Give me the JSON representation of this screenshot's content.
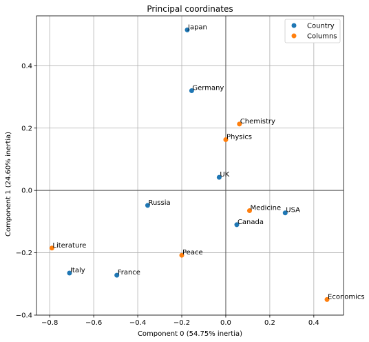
{
  "chart_data": {
    "type": "scatter",
    "title": "Principal coordinates",
    "xlabel": "Component 0 (54.75% inertia)",
    "ylabel": "Component 1 (24.60% inertia)",
    "xlim": [
      -0.86,
      0.535
    ],
    "ylim": [
      -0.4,
      0.56
    ],
    "xticks": [
      -0.8,
      -0.6,
      -0.4,
      -0.2,
      0.0,
      0.2,
      0.4
    ],
    "xtick_labels": [
      "−0.8",
      "−0.6",
      "−0.4",
      "−0.2",
      "0.0",
      "0.2",
      "0.4"
    ],
    "yticks": [
      -0.4,
      -0.2,
      0.0,
      0.2,
      0.4
    ],
    "ytick_labels": [
      "−0.4",
      "−0.2",
      "0.0",
      "0.2",
      "0.4"
    ],
    "grid": true,
    "legend_position": "top-right",
    "series": [
      {
        "name": "Country",
        "color": "#1f77b4",
        "points": [
          {
            "label": "Japan",
            "x": -0.175,
            "y": 0.515
          },
          {
            "label": "Germany",
            "x": -0.155,
            "y": 0.32
          },
          {
            "label": "UK",
            "x": -0.03,
            "y": 0.042
          },
          {
            "label": "Russia",
            "x": -0.355,
            "y": -0.048
          },
          {
            "label": "USA",
            "x": 0.27,
            "y": -0.072
          },
          {
            "label": "Canada",
            "x": 0.05,
            "y": -0.11
          },
          {
            "label": "Italy",
            "x": -0.71,
            "y": -0.265
          },
          {
            "label": "France",
            "x": -0.495,
            "y": -0.272
          }
        ]
      },
      {
        "name": "Columns",
        "color": "#ff7f0e",
        "points": [
          {
            "label": "Chemistry",
            "x": 0.062,
            "y": 0.213
          },
          {
            "label": "Physics",
            "x": 0.0,
            "y": 0.163
          },
          {
            "label": "Medicine",
            "x": 0.108,
            "y": -0.065
          },
          {
            "label": "Literature",
            "x": -0.79,
            "y": -0.185
          },
          {
            "label": "Peace",
            "x": -0.2,
            "y": -0.208
          },
          {
            "label": "Economics",
            "x": 0.46,
            "y": -0.35
          }
        ]
      }
    ]
  }
}
